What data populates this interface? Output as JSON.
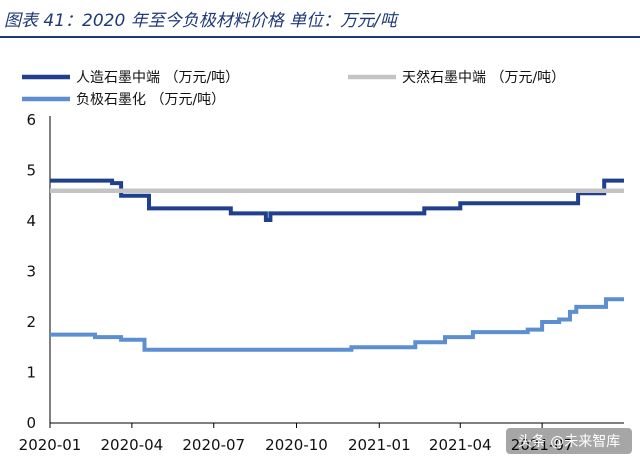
{
  "title": "图表 41：2020 年至今负极材料价格 单位：万元/吨",
  "watermark": "头条 @未来智库",
  "chart_data": {
    "type": "line",
    "x_tick_labels": [
      "2020-01",
      "2020-04",
      "2020-07",
      "2020-10",
      "2021-01",
      "2021-04",
      "2021-07"
    ],
    "x_range": [
      "2020-01-01",
      "2021-09-30"
    ],
    "y_ticks": [
      0,
      1,
      2,
      3,
      4,
      5,
      6
    ],
    "ylim": [
      0,
      6
    ],
    "grid": false,
    "legend": "top",
    "series": [
      {
        "name": "人造石墨中端 （万元/吨）",
        "color": "#1f3f8f",
        "points": [
          [
            "2020-01-01",
            4.8
          ],
          [
            "2020-03-10",
            4.8
          ],
          [
            "2020-03-10",
            4.75
          ],
          [
            "2020-03-20",
            4.75
          ],
          [
            "2020-03-20",
            4.5
          ],
          [
            "2020-04-20",
            4.5
          ],
          [
            "2020-04-20",
            4.25
          ],
          [
            "2020-07-20",
            4.25
          ],
          [
            "2020-07-20",
            4.15
          ],
          [
            "2020-08-28",
            4.15
          ],
          [
            "2020-08-28",
            4.02
          ],
          [
            "2020-09-02",
            4.02
          ],
          [
            "2020-09-02",
            4.15
          ],
          [
            "2020-09-10",
            4.15
          ],
          [
            "2021-02-20",
            4.15
          ],
          [
            "2021-02-20",
            4.25
          ],
          [
            "2021-04-01",
            4.25
          ],
          [
            "2021-04-01",
            4.35
          ],
          [
            "2021-08-10",
            4.35
          ],
          [
            "2021-08-10",
            4.55
          ],
          [
            "2021-09-08",
            4.55
          ],
          [
            "2021-09-08",
            4.8
          ],
          [
            "2021-09-30",
            4.8
          ]
        ]
      },
      {
        "name": "天然石墨中端 （万元/吨）",
        "color": "#c4c4c4",
        "points": [
          [
            "2020-01-01",
            4.6
          ],
          [
            "2021-09-30",
            4.6
          ]
        ]
      },
      {
        "name": "负极石墨化 （万元/吨）",
        "color": "#5b8fd1",
        "points": [
          [
            "2020-01-01",
            1.75
          ],
          [
            "2020-02-20",
            1.75
          ],
          [
            "2020-02-20",
            1.7
          ],
          [
            "2020-03-20",
            1.7
          ],
          [
            "2020-03-20",
            1.65
          ],
          [
            "2020-04-15",
            1.65
          ],
          [
            "2020-04-15",
            1.45
          ],
          [
            "2020-12-01",
            1.45
          ],
          [
            "2020-12-01",
            1.5
          ],
          [
            "2021-02-10",
            1.5
          ],
          [
            "2021-02-10",
            1.6
          ],
          [
            "2021-03-15",
            1.6
          ],
          [
            "2021-03-15",
            1.7
          ],
          [
            "2021-04-15",
            1.7
          ],
          [
            "2021-04-15",
            1.8
          ],
          [
            "2021-06-15",
            1.8
          ],
          [
            "2021-06-15",
            1.85
          ],
          [
            "2021-07-01",
            1.85
          ],
          [
            "2021-07-01",
            2.0
          ],
          [
            "2021-07-20",
            2.0
          ],
          [
            "2021-07-20",
            2.05
          ],
          [
            "2021-08-01",
            2.05
          ],
          [
            "2021-08-01",
            2.2
          ],
          [
            "2021-08-08",
            2.2
          ],
          [
            "2021-08-08",
            2.3
          ],
          [
            "2021-09-10",
            2.3
          ],
          [
            "2021-09-10",
            2.45
          ],
          [
            "2021-09-30",
            2.45
          ]
        ]
      }
    ]
  }
}
